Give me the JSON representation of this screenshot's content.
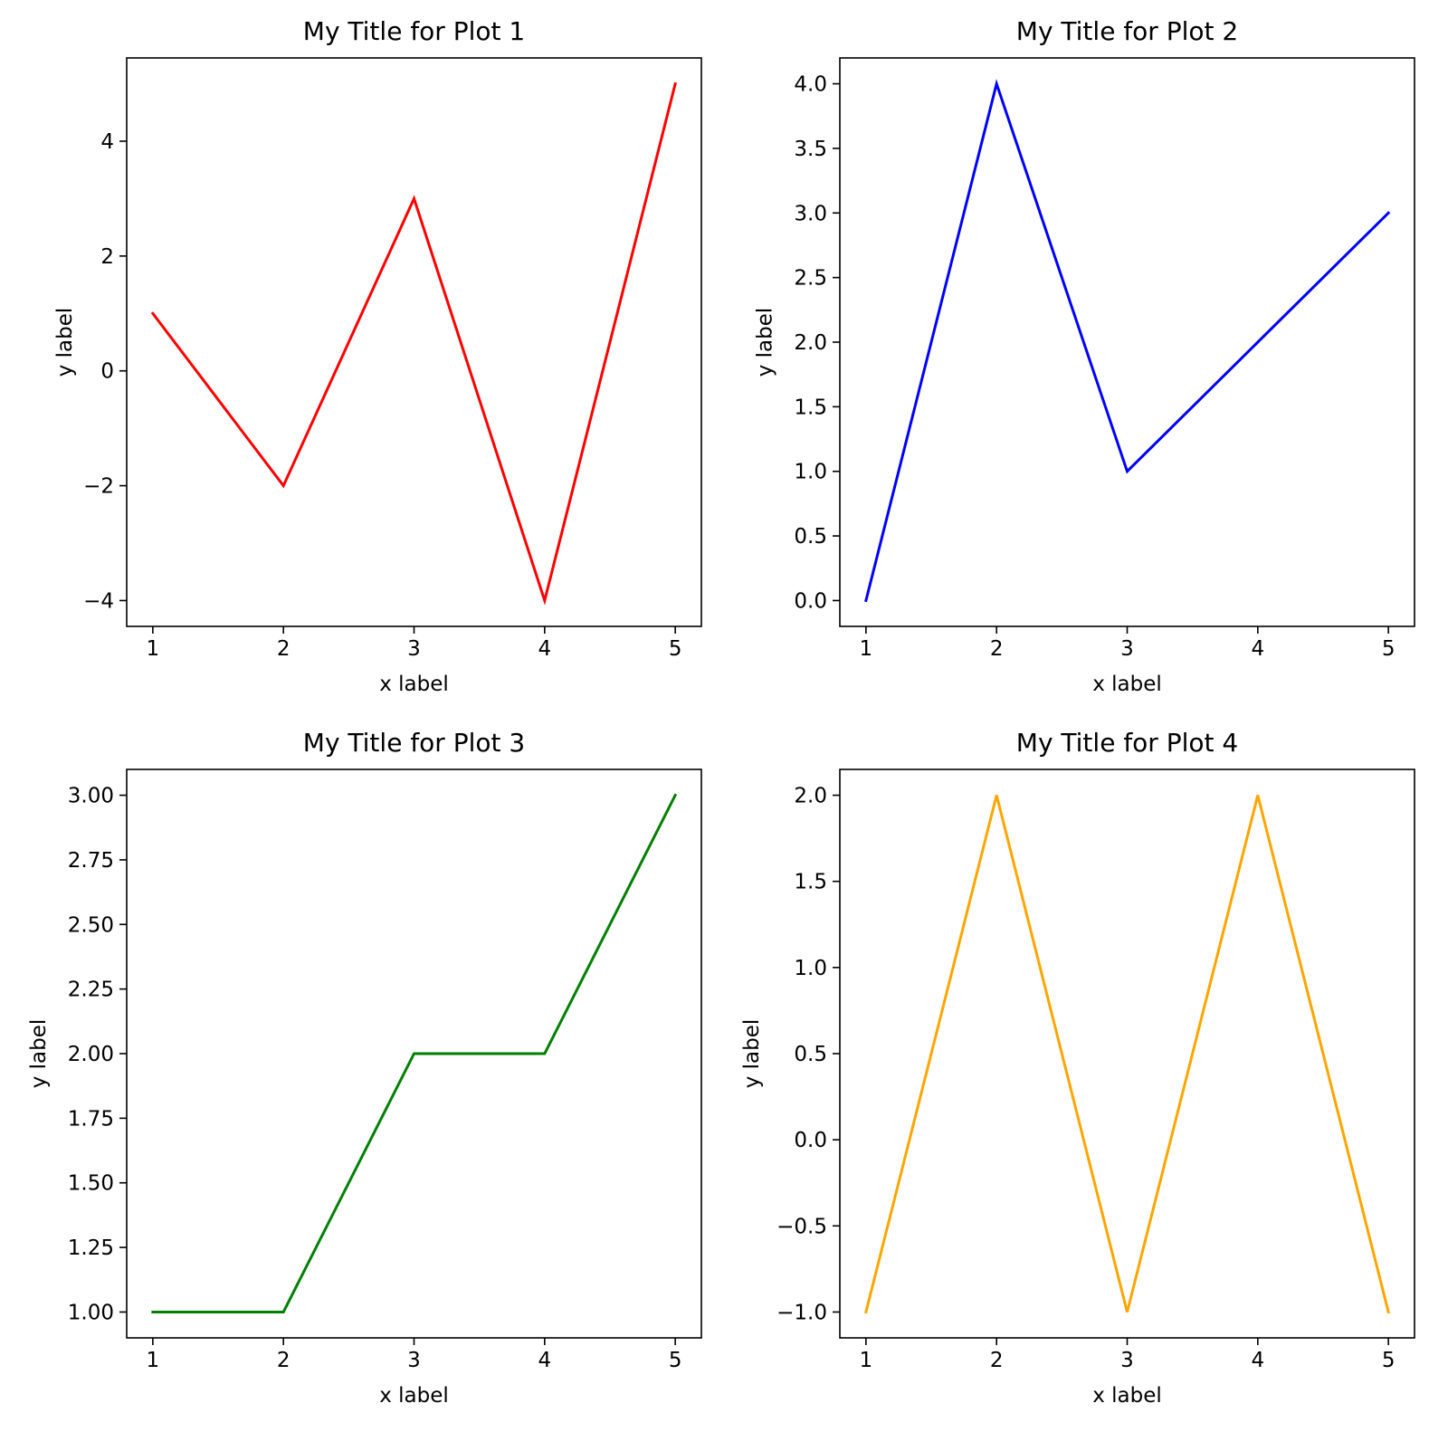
{
  "chart_data": [
    {
      "type": "line",
      "title": "My Title for Plot 1",
      "xlabel": "x label",
      "ylabel": "y label",
      "x": [
        1,
        2,
        3,
        4,
        5
      ],
      "series": [
        {
          "values": [
            1,
            -2,
            3,
            -4,
            5
          ],
          "color": "#ff0000"
        }
      ],
      "xlim": [
        0.8,
        5.2
      ],
      "ylim": [
        -4.45,
        5.45
      ],
      "xticks": [
        1,
        2,
        3,
        4,
        5
      ],
      "xtick_labels": [
        "1",
        "2",
        "3",
        "4",
        "5"
      ],
      "yticks": [
        -4,
        -2,
        0,
        2,
        4
      ],
      "ytick_labels": [
        "−4",
        "−2",
        "0",
        "2",
        "4"
      ],
      "grid": false
    },
    {
      "type": "line",
      "title": "My Title for Plot 2",
      "xlabel": "x label",
      "ylabel": "y label",
      "x": [
        1,
        2,
        3,
        4,
        5
      ],
      "series": [
        {
          "values": [
            0,
            4,
            1,
            2,
            3
          ],
          "color": "#0000ff"
        }
      ],
      "xlim": [
        0.8,
        5.2
      ],
      "ylim": [
        -0.2,
        4.2
      ],
      "xticks": [
        1,
        2,
        3,
        4,
        5
      ],
      "xtick_labels": [
        "1",
        "2",
        "3",
        "4",
        "5"
      ],
      "yticks": [
        0,
        0.5,
        1,
        1.5,
        2,
        2.5,
        3,
        3.5,
        4
      ],
      "ytick_labels": [
        "0.0",
        "0.5",
        "1.0",
        "1.5",
        "2.0",
        "2.5",
        "3.0",
        "3.5",
        "4.0"
      ],
      "grid": false
    },
    {
      "type": "line",
      "title": "My Title for Plot 3",
      "xlabel": "x label",
      "ylabel": "y label",
      "x": [
        1,
        2,
        3,
        4,
        5
      ],
      "series": [
        {
          "values": [
            1,
            1,
            2,
            2,
            3
          ],
          "color": "#008000"
        }
      ],
      "xlim": [
        0.8,
        5.2
      ],
      "ylim": [
        0.9,
        3.1
      ],
      "xticks": [
        1,
        2,
        3,
        4,
        5
      ],
      "xtick_labels": [
        "1",
        "2",
        "3",
        "4",
        "5"
      ],
      "yticks": [
        1,
        1.25,
        1.5,
        1.75,
        2,
        2.25,
        2.5,
        2.75,
        3
      ],
      "ytick_labels": [
        "1.00",
        "1.25",
        "1.50",
        "1.75",
        "2.00",
        "2.25",
        "2.50",
        "2.75",
        "3.00"
      ],
      "grid": false
    },
    {
      "type": "line",
      "title": "My Title for Plot 4",
      "xlabel": "x label",
      "ylabel": "y label",
      "x": [
        1,
        2,
        3,
        4,
        5
      ],
      "series": [
        {
          "values": [
            -1,
            2,
            -1,
            2,
            -1
          ],
          "color": "#ffa500"
        }
      ],
      "xlim": [
        0.8,
        5.2
      ],
      "ylim": [
        -1.15,
        2.15
      ],
      "xticks": [
        1,
        2,
        3,
        4,
        5
      ],
      "xtick_labels": [
        "1",
        "2",
        "3",
        "4",
        "5"
      ],
      "yticks": [
        -1,
        -0.5,
        0,
        0.5,
        1,
        1.5,
        2
      ],
      "ytick_labels": [
        "−1.0",
        "−0.5",
        "0.0",
        "0.5",
        "1.0",
        "1.5",
        "2.0"
      ],
      "grid": false
    }
  ]
}
